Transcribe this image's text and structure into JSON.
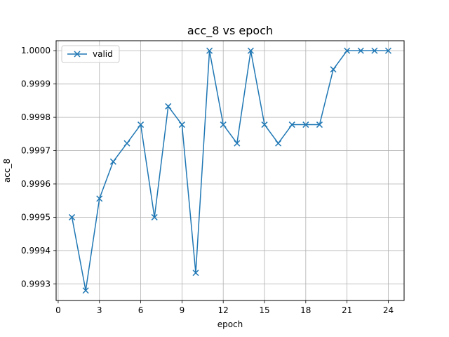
{
  "chart_data": {
    "type": "line",
    "title": "acc_8 vs epoch",
    "xlabel": "epoch",
    "ylabel": "acc_8",
    "xlim": [
      -0.15,
      25.15
    ],
    "ylim": [
      0.99925,
      1.00003
    ],
    "xticks": [
      0,
      3,
      6,
      9,
      12,
      15,
      18,
      21,
      24
    ],
    "yticks": [
      0.9993,
      0.9994,
      0.9995,
      0.9996,
      0.9997,
      0.9998,
      0.9999,
      1.0
    ],
    "ytick_labels": [
      "0.9993",
      "0.9994",
      "0.9995",
      "0.9996",
      "0.9997",
      "0.9998",
      "0.9999",
      "1.0000"
    ],
    "grid": true,
    "legend_position": "top-left",
    "series": [
      {
        "name": "valid",
        "color": "#1f77b4",
        "marker": "x",
        "x": [
          1,
          2,
          3,
          4,
          5,
          6,
          7,
          8,
          9,
          10,
          11,
          12,
          13,
          14,
          15,
          16,
          17,
          18,
          19,
          20,
          21,
          22,
          23,
          24
        ],
        "y": [
          0.9995,
          0.99928,
          0.999556,
          0.999667,
          0.999722,
          0.999778,
          0.9995,
          0.999833,
          0.999778,
          0.999333,
          1.0,
          0.999778,
          0.999722,
          1.0,
          0.999778,
          0.999722,
          0.999778,
          0.999778,
          0.999778,
          0.999944,
          1.0,
          1.0,
          1.0,
          1.0
        ]
      }
    ]
  }
}
